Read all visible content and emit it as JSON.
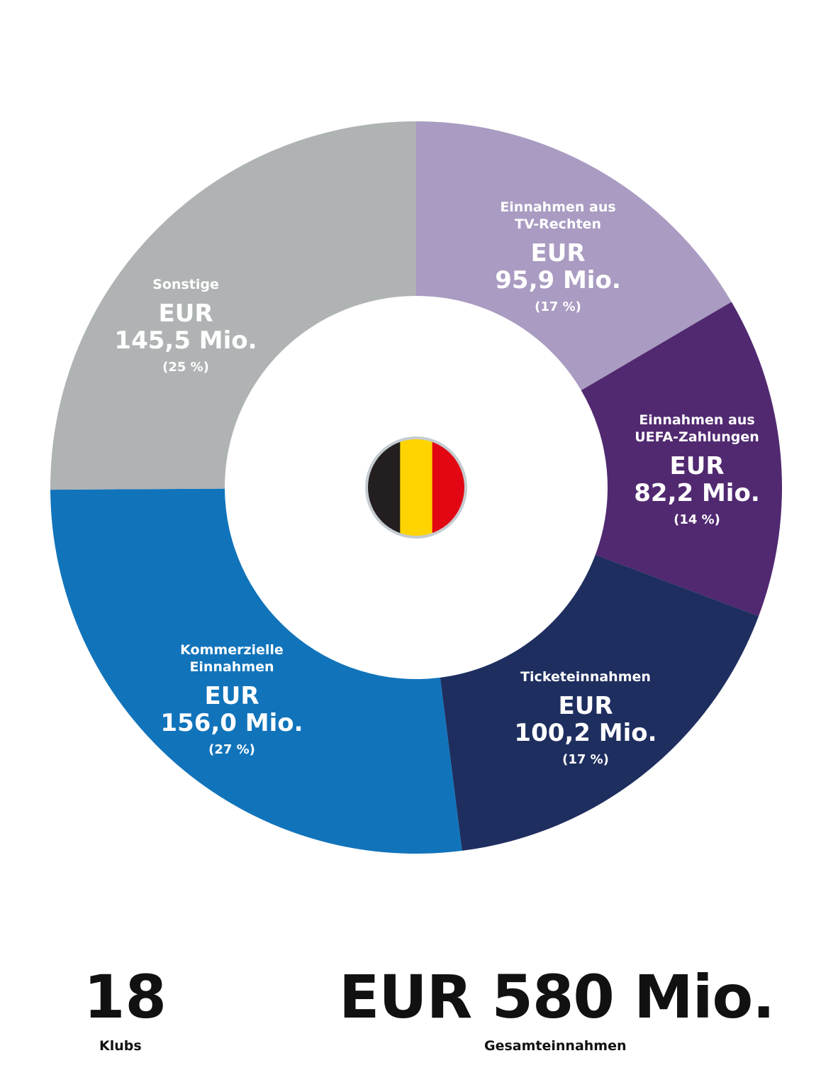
{
  "chart_data": {
    "type": "pie",
    "slices": [
      {
        "name": "Einnahmen aus\nTV-Rechten",
        "currency": "EUR",
        "value_label": "95,9 Mio.",
        "percent_label": "(17 %)",
        "value": 95.9,
        "color": "#a99bc1"
      },
      {
        "name": "Einnahmen aus\nUEFA-Zahlungen",
        "currency": "EUR",
        "value_label": "82,2 Mio.",
        "percent_label": "(14 %)",
        "value": 82.2,
        "color": "#512970"
      },
      {
        "name": "Ticketeinnahmen",
        "currency": "EUR",
        "value_label": "100,2 Mio.",
        "percent_label": "(17 %)",
        "value": 100.2,
        "color": "#1e2e5f"
      },
      {
        "name": "Kommerzielle\nEinnahmen",
        "currency": "EUR",
        "value_label": "156,0 Mio.",
        "percent_label": "(27 %)",
        "value": 156.0,
        "color": "#1174bb"
      },
      {
        "name": "Sonstige",
        "currency": "EUR",
        "value_label": "145,5 Mio.",
        "percent_label": "(25 %)",
        "value": 145.5,
        "color": "#b0b3b4"
      }
    ],
    "flag": {
      "colors": [
        "#231f20",
        "#fdd400",
        "#e30613"
      ],
      "border_color": "#c5ccd1"
    }
  },
  "summary": {
    "clubs_count": "18",
    "clubs_label": "Klubs",
    "total_value": "EUR 580 Mio.",
    "total_label": "Gesamteinnahmen"
  }
}
